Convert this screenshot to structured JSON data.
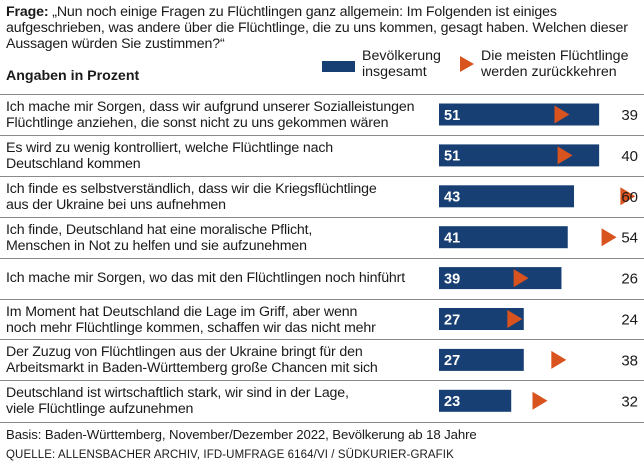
{
  "question": {
    "prefix": "Frage:",
    "text": " „Nun noch einige Fragen zu Flüchtlingen ganz allgemein: Im Folgenden ist einiges aufgeschrieben, was andere über die Flüchtlinge, die zu uns kommen, gesagt haben. Welchen dieser Aussagen würden Sie zustimmen?“"
  },
  "subhead": "Angaben in Prozent",
  "legend": {
    "series1": "Bevölkerung insgesamt",
    "series2": "Die meisten Flüchtlinge werden zurückkehren"
  },
  "colors": {
    "bar": "#173f73",
    "marker": "#d9531e"
  },
  "chart_data": {
    "type": "bar",
    "orientation": "horizontal",
    "title": "Frage: „Nun noch einige Fragen zu Flüchtlingen ganz allgemein: Im Folgenden ist einiges aufgeschrieben, was andere über die Flüchtlinge, die zu uns kommen, gesagt haben. Welchen dieser Aussagen würden Sie zustimmen?“",
    "unit": "Angaben in Prozent",
    "categories": [
      "Ich mache mir Sorgen, dass wir aufgrund unserer Sozialleistungen Flüchtlinge anziehen, die sonst nicht zu uns gekommen wären",
      "Es wird zu wenig kontrolliert, welche Flüchtlinge nach Deutschland kommen",
      "Ich finde es selbstverständlich, dass wir die Kriegsflüchtlinge aus der Ukraine bei uns aufnehmen",
      "Ich finde, Deutschland hat eine moralische Pflicht, Menschen in Not zu helfen und sie aufzunehmen",
      "Ich mache mir Sorgen, wo das mit den Flüchtlingen noch hinführt",
      "Im Moment hat Deutschland die Lage im Griff, aber wenn noch mehr Flüchtlinge kommen, schaffen wir das nicht mehr",
      "Der Zuzug von Flüchtlingen aus der Ukraine bringt für den Arbeitsmarkt in Baden-Württemberg große Chancen mit sich",
      "Deutschland ist wirtschaftlich stark, wir sind in der Lage, viele Flüchtlinge aufzunehmen"
    ],
    "label_lines": [
      [
        "Ich mache mir Sorgen, dass wir aufgrund unserer Sozialleistungen",
        "Flüchtlinge anziehen, die sonst nicht zu uns gekommen wären"
      ],
      [
        "Es wird zu wenig kontrolliert, welche Flüchtlinge nach",
        "Deutschland kommen"
      ],
      [
        "Ich finde es selbstverständlich, dass wir die Kriegsflüchtlinge",
        "aus der Ukraine bei uns aufnehmen"
      ],
      [
        "Ich finde, Deutschland hat eine moralische Pflicht,",
        "Menschen in Not zu helfen und sie aufzunehmen"
      ],
      [
        "Ich mache mir Sorgen, wo das mit den Flüchtlingen noch hinführt"
      ],
      [
        "Im Moment hat Deutschland die Lage im Griff, aber wenn",
        "noch mehr Flüchtlinge kommen, schaffen wir das nicht mehr"
      ],
      [
        "Der Zuzug von Flüchtlingen aus der Ukraine bringt für den",
        "Arbeitsmarkt in Baden-Württemberg große Chancen mit sich"
      ],
      [
        "Deutschland ist wirtschaftlich stark, wir sind in der Lage,",
        "viele Flüchtlinge aufzunehmen"
      ]
    ],
    "series": [
      {
        "name": "Bevölkerung insgesamt",
        "values": [
          51,
          51,
          43,
          41,
          39,
          27,
          27,
          23
        ]
      },
      {
        "name": "Die meisten Flüchtlinge werden zurückkehren",
        "values": [
          39,
          40,
          60,
          54,
          26,
          24,
          38,
          32
        ]
      }
    ],
    "xlim": [
      0,
      60
    ]
  },
  "footer": {
    "basis": "Basis: Baden-Württemberg, November/Dezember 2022, Bevölkerung ab 18 Jahre",
    "source": "QUELLE: ALLENSBACHER ARCHIV, IFD-UMFRAGE 6164/VI / SÜDKURIER-GRAFIK"
  }
}
